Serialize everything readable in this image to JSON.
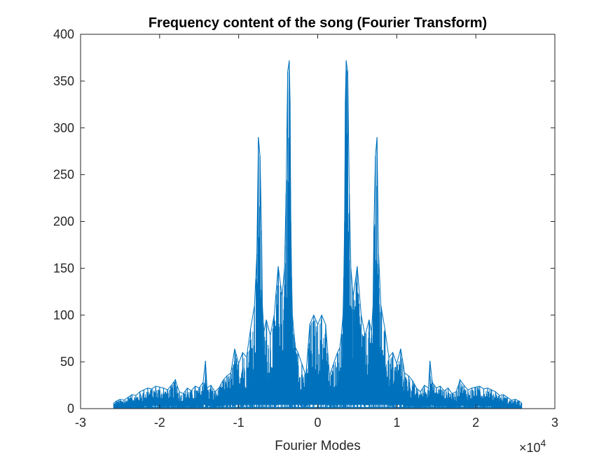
{
  "chart_data": {
    "type": "line",
    "title": "Frequency content of the song (Fourier Transform)",
    "xlabel": "Fourier Modes",
    "ylabel": "",
    "x_exponent_label": "×10",
    "x_exponent_power": "4",
    "x_scale": 10000,
    "xlim": [
      -30000,
      30000
    ],
    "ylim": [
      0,
      400
    ],
    "x_ticks": [
      -30000,
      -20000,
      -10000,
      0,
      10000,
      20000,
      30000
    ],
    "x_tick_labels": [
      "-3",
      "-2",
      "-1",
      "0",
      "1",
      "2",
      "3"
    ],
    "y_ticks": [
      0,
      50,
      100,
      150,
      200,
      250,
      300,
      350,
      400
    ],
    "y_tick_labels": [
      "0",
      "50",
      "100",
      "150",
      "200",
      "250",
      "300",
      "350",
      "400"
    ],
    "grid": false,
    "line_color": "#0072BD",
    "x_range_of_data": [
      -25800,
      25800
    ],
    "series": [
      {
        "x": [
          -25800,
          -25500,
          -25000,
          -24500,
          -24000,
          -23500,
          -23000,
          -22500,
          -22000,
          -21500,
          -21000,
          -20500,
          -20000,
          -19500,
          -19000,
          -18500,
          -18000,
          -17800,
          -17500,
          -17000,
          -16500,
          -16000,
          -15500,
          -15000,
          -14500,
          -14200,
          -14000,
          -13500,
          -13000,
          -12500,
          -12000,
          -11500,
          -11000,
          -10500,
          -10000,
          -9500,
          -9000,
          -8500,
          -8000,
          -7700,
          -7500,
          -7300,
          -7100,
          -7000,
          -6800,
          -6500,
          -6000,
          -5500,
          -5000,
          -4500,
          -4200,
          -4000,
          -3800,
          -3600,
          -3500,
          -3400,
          -3300,
          -3200,
          -3000,
          -2800,
          -2500,
          -2000,
          -1500,
          -1000,
          -500,
          0,
          500,
          1000,
          1500,
          2000,
          2500,
          2800,
          3000,
          3200,
          3300,
          3400,
          3500,
          3600,
          3800,
          4000,
          4200,
          4500,
          5000,
          5500,
          6000,
          6500,
          6800,
          7000,
          7100,
          7300,
          7500,
          7700,
          8000,
          8500,
          9000,
          9500,
          10000,
          10500,
          11000,
          11500,
          12000,
          12500,
          13000,
          13500,
          14000,
          14200,
          14500,
          15000,
          15500,
          16000,
          16500,
          17000,
          17500,
          17800,
          18000,
          18500,
          19000,
          19500,
          20000,
          20500,
          21000,
          21500,
          22000,
          22500,
          23000,
          23500,
          24000,
          24500,
          25000,
          25500,
          25800
        ],
        "y": [
          6,
          8,
          10,
          9,
          12,
          15,
          14,
          18,
          20,
          22,
          21,
          24,
          23,
          22,
          20,
          25,
          31,
          25,
          18,
          16,
          22,
          19,
          24,
          22,
          28,
          51,
          22,
          25,
          18,
          22,
          30,
          35,
          38,
          64,
          48,
          60,
          55,
          85,
          110,
          165,
          290,
          270,
          190,
          110,
          82,
          95,
          78,
          100,
          152,
          120,
          150,
          230,
          360,
          372,
          330,
          200,
          140,
          100,
          80,
          65,
          60,
          48,
          35,
          90,
          100,
          90,
          100,
          90,
          35,
          48,
          60,
          65,
          80,
          100,
          140,
          200,
          330,
          372,
          360,
          230,
          150,
          120,
          152,
          100,
          78,
          95,
          82,
          110,
          190,
          270,
          290,
          165,
          110,
          85,
          55,
          60,
          48,
          64,
          38,
          35,
          30,
          22,
          18,
          25,
          22,
          51,
          28,
          22,
          24,
          19,
          22,
          16,
          18,
          25,
          31,
          25,
          20,
          22,
          23,
          24,
          21,
          22,
          20,
          18,
          14,
          15,
          12,
          9,
          10,
          8,
          6
        ]
      }
    ]
  }
}
